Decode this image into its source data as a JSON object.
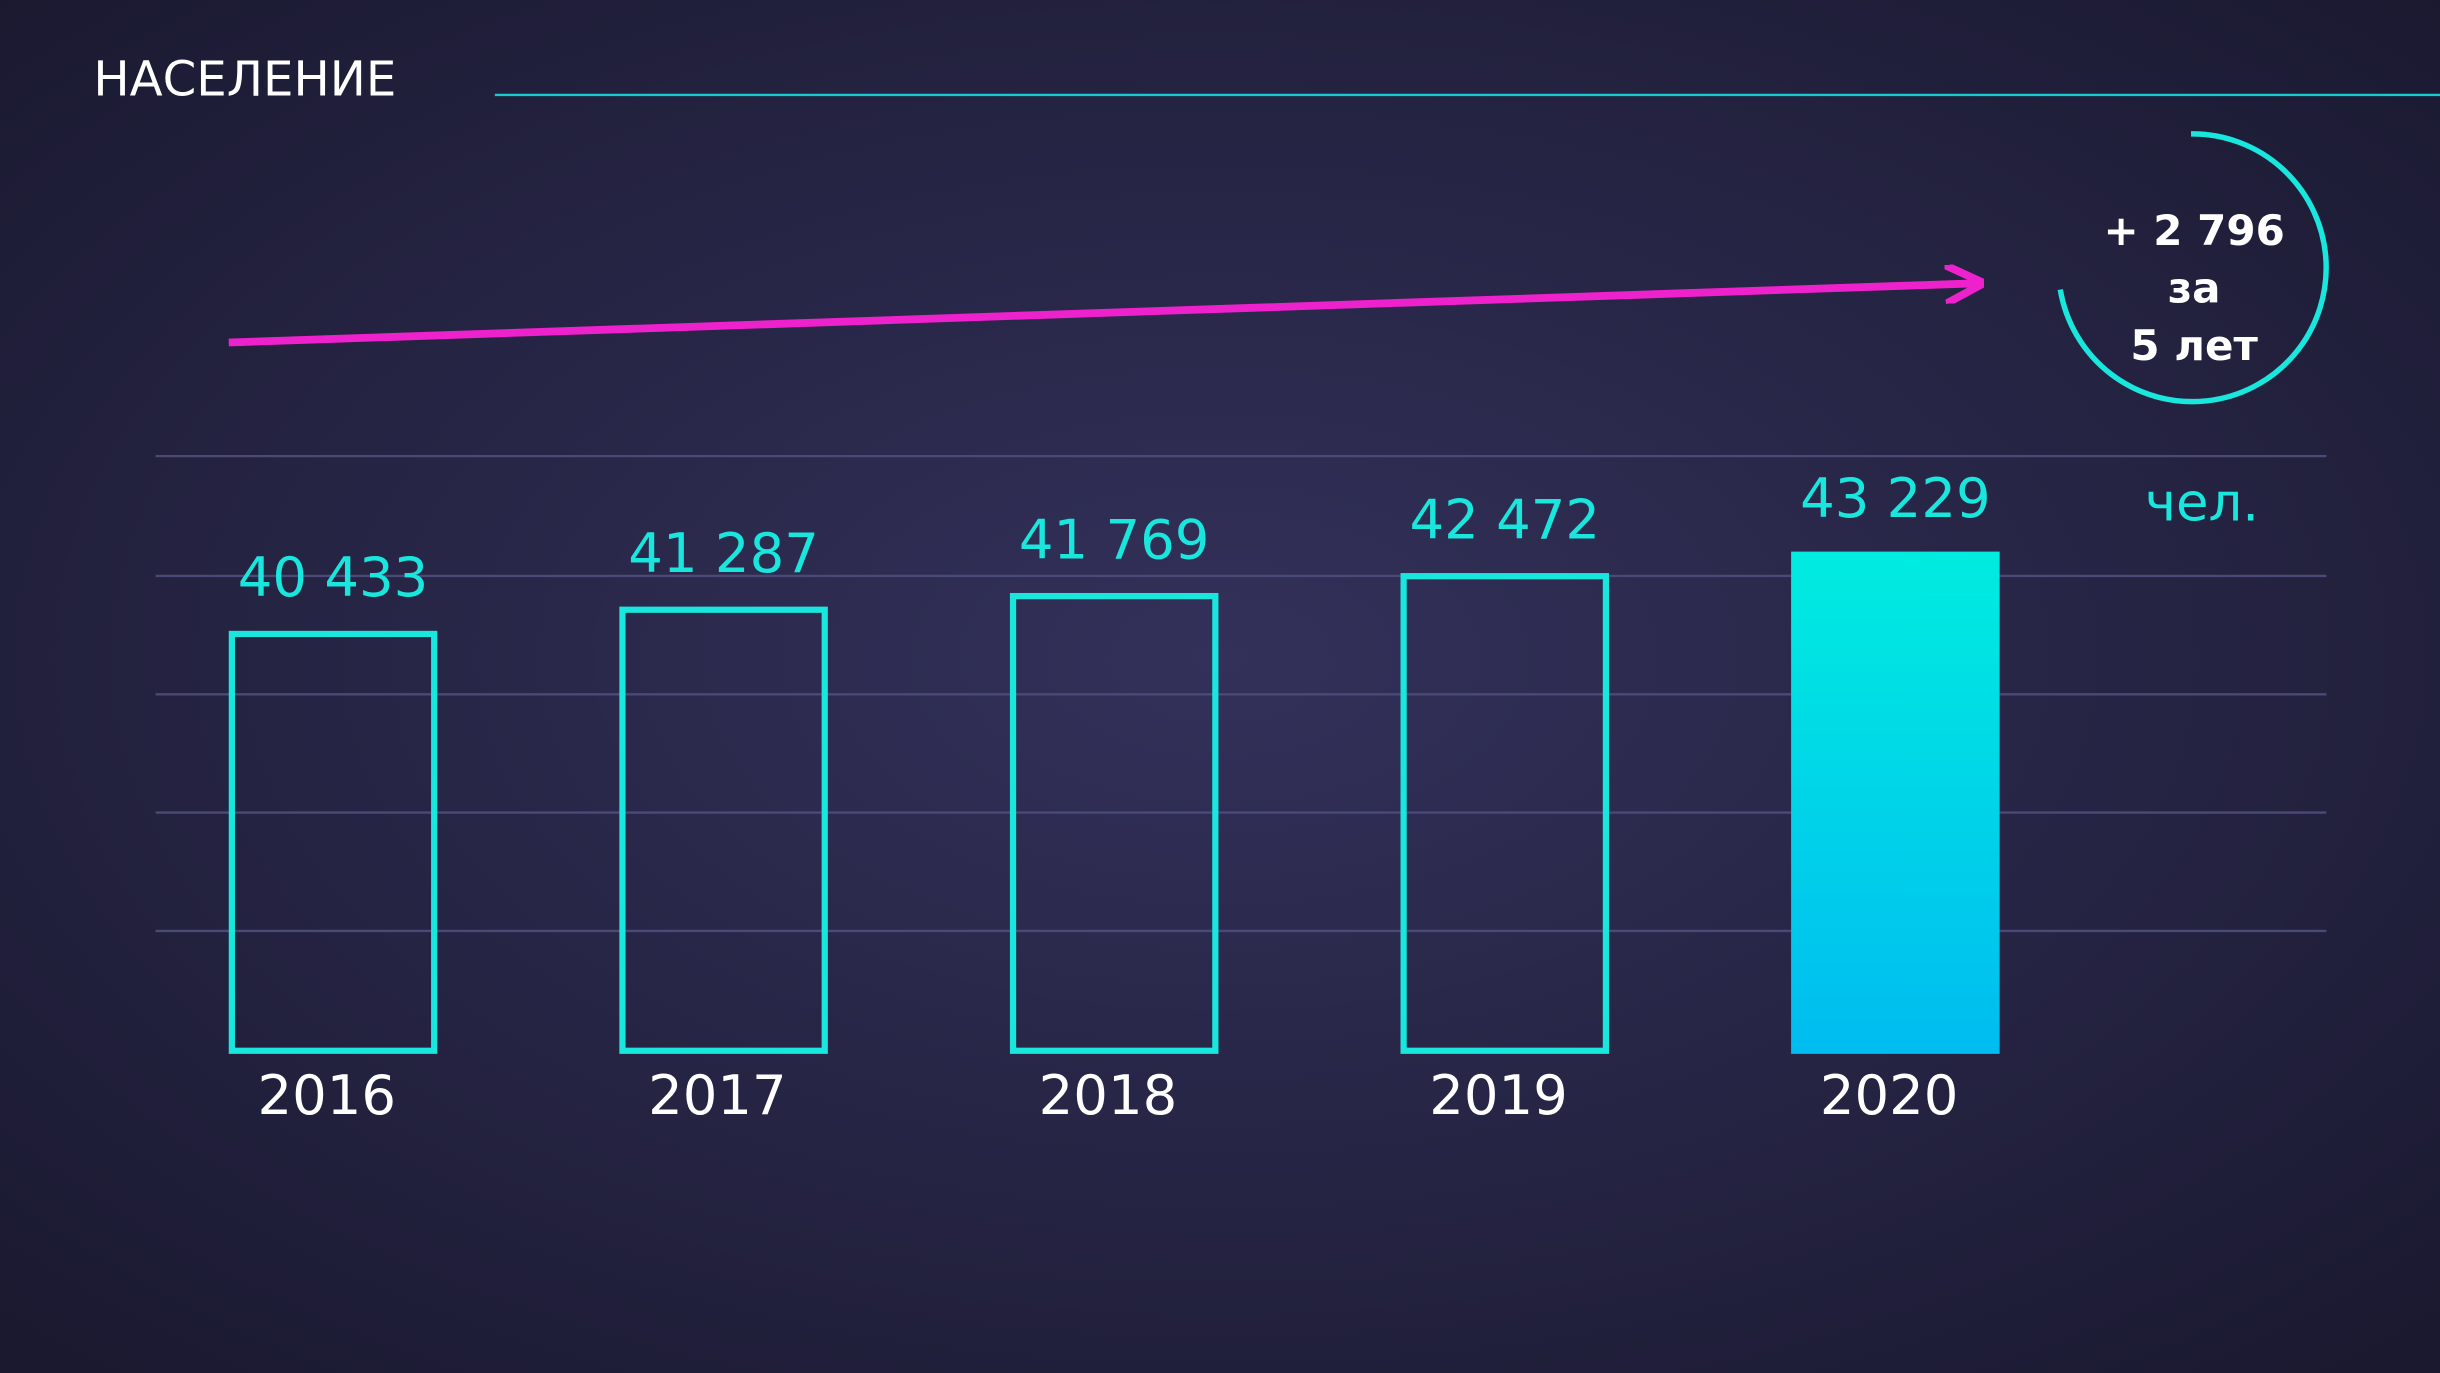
{
  "chart_data": {
    "type": "bar",
    "title": "НАСЕЛЕНИЕ",
    "unit": "чел.",
    "categories": [
      "2016",
      "2017",
      "2018",
      "2019",
      "2020"
    ],
    "values": [
      40433,
      41287,
      41769,
      42472,
      43229
    ],
    "value_labels": [
      "40 433",
      "41 287",
      "41 769",
      "42 472",
      "43 229"
    ],
    "filled": [
      false,
      false,
      false,
      false,
      true
    ],
    "color": "#19e6dc",
    "fill_colors": [
      "#00ece0",
      "#00bcf0"
    ],
    "ylim": [
      25500,
      46600
    ],
    "annotation": [
      "+ 2 796",
      "за",
      "5 лет"
    ]
  }
}
